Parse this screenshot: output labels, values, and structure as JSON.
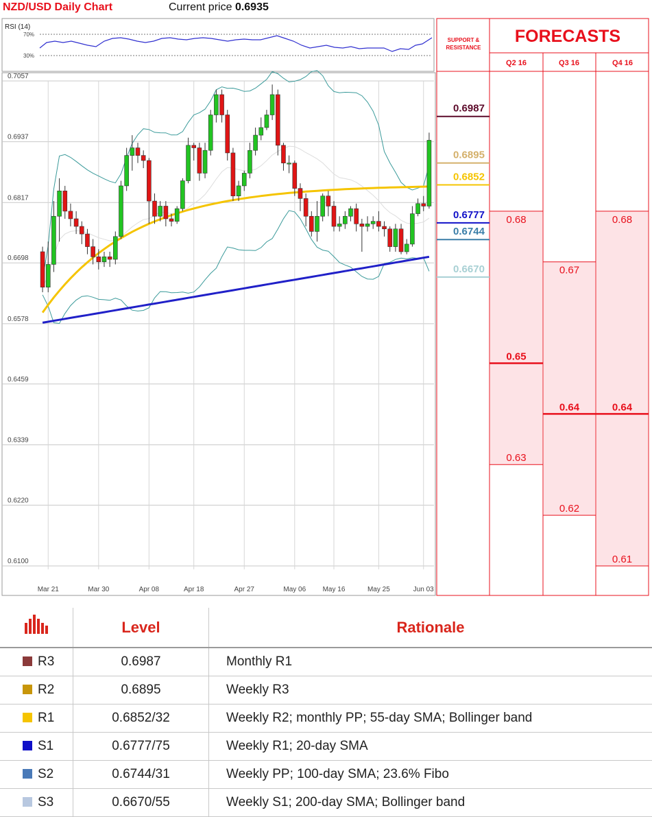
{
  "header": {
    "title": "NZD/USD Daily Chart",
    "price_label": "Current price",
    "price_value": "0.6935"
  },
  "rsi": {
    "label": "RSI (14)",
    "levels": [
      "70%",
      "30%"
    ]
  },
  "chart_data": {
    "type": "candlestick",
    "y_ticks": [
      "0.7057",
      "0.6937",
      "0.6817",
      "0.6698",
      "0.6578",
      "0.6459",
      "0.6339",
      "0.6220",
      "0.6100"
    ],
    "ylim": [
      0.61,
      0.7057
    ],
    "x_ticks": [
      "Mar 21",
      "Mar 30",
      "Apr 08",
      "Apr 18",
      "Apr 27",
      "May 06",
      "May 16",
      "May 25",
      "Jun 03"
    ],
    "candles": [
      [
        0.672,
        0.665,
        0.673,
        0.664
      ],
      [
        0.665,
        0.6695,
        0.674,
        0.664
      ],
      [
        0.6695,
        0.679,
        0.682,
        0.668
      ],
      [
        0.679,
        0.684,
        0.6865,
        0.674
      ],
      [
        0.684,
        0.68,
        0.685,
        0.6785
      ],
      [
        0.68,
        0.6785,
        0.6815,
        0.677
      ],
      [
        0.6785,
        0.677,
        0.68,
        0.6755
      ],
      [
        0.677,
        0.6755,
        0.678,
        0.6735
      ],
      [
        0.6755,
        0.673,
        0.6765,
        0.6715
      ],
      [
        0.673,
        0.671,
        0.6745,
        0.6695
      ],
      [
        0.671,
        0.67,
        0.6725,
        0.6685
      ],
      [
        0.67,
        0.671,
        0.672,
        0.669
      ],
      [
        0.671,
        0.6705,
        0.672,
        0.669
      ],
      [
        0.6705,
        0.675,
        0.676,
        0.6695
      ],
      [
        0.675,
        0.685,
        0.686,
        0.6745
      ],
      [
        0.685,
        0.691,
        0.6925,
        0.684
      ],
      [
        0.691,
        0.6925,
        0.695,
        0.688
      ],
      [
        0.6925,
        0.691,
        0.6935,
        0.6895
      ],
      [
        0.691,
        0.69,
        0.692,
        0.6885
      ],
      [
        0.69,
        0.682,
        0.6905,
        0.6775
      ],
      [
        0.682,
        0.679,
        0.6835,
        0.6775
      ],
      [
        0.679,
        0.681,
        0.682,
        0.678
      ],
      [
        0.681,
        0.6785,
        0.682,
        0.677
      ],
      [
        0.6785,
        0.678,
        0.6795,
        0.677
      ],
      [
        0.678,
        0.6805,
        0.681,
        0.6775
      ],
      [
        0.6805,
        0.686,
        0.6865,
        0.68
      ],
      [
        0.686,
        0.693,
        0.6945,
        0.6855
      ],
      [
        0.693,
        0.6925,
        0.6935,
        0.69
      ],
      [
        0.6925,
        0.6875,
        0.6935,
        0.686
      ],
      [
        0.6875,
        0.692,
        0.6935,
        0.6865
      ],
      [
        0.692,
        0.699,
        0.7,
        0.691
      ],
      [
        0.699,
        0.703,
        0.704,
        0.6975
      ],
      [
        0.703,
        0.699,
        0.704,
        0.6975
      ],
      [
        0.699,
        0.6915,
        0.7,
        0.69
      ],
      [
        0.6915,
        0.683,
        0.6925,
        0.682
      ],
      [
        0.683,
        0.685,
        0.686,
        0.682
      ],
      [
        0.685,
        0.6875,
        0.688,
        0.684
      ],
      [
        0.6875,
        0.692,
        0.6935,
        0.6865
      ],
      [
        0.692,
        0.695,
        0.6965,
        0.691
      ],
      [
        0.695,
        0.6965,
        0.6985,
        0.694
      ],
      [
        0.6965,
        0.699,
        0.7,
        0.696
      ],
      [
        0.699,
        0.703,
        0.705,
        0.698
      ],
      [
        0.703,
        0.693,
        0.704,
        0.691
      ],
      [
        0.693,
        0.6895,
        0.6935,
        0.688
      ],
      [
        0.6895,
        0.6895,
        0.691,
        0.6875
      ],
      [
        0.6895,
        0.6845,
        0.69,
        0.683
      ],
      [
        0.6845,
        0.6825,
        0.6855,
        0.68
      ],
      [
        0.6825,
        0.679,
        0.6835,
        0.677
      ],
      [
        0.679,
        0.676,
        0.68,
        0.675
      ],
      [
        0.676,
        0.679,
        0.682,
        0.674
      ],
      [
        0.679,
        0.683,
        0.6835,
        0.678
      ],
      [
        0.683,
        0.681,
        0.684,
        0.679
      ],
      [
        0.681,
        0.677,
        0.682,
        0.676
      ],
      [
        0.677,
        0.6775,
        0.679,
        0.676
      ],
      [
        0.6775,
        0.679,
        0.68,
        0.6765
      ],
      [
        0.679,
        0.6805,
        0.681,
        0.678
      ],
      [
        0.6805,
        0.6775,
        0.6815,
        0.676
      ],
      [
        0.6775,
        0.677,
        0.6785,
        0.672
      ],
      [
        0.677,
        0.6775,
        0.679,
        0.676
      ],
      [
        0.6775,
        0.678,
        0.679,
        0.6765
      ],
      [
        0.678,
        0.677,
        0.68,
        0.676
      ],
      [
        0.677,
        0.6765,
        0.678,
        0.675
      ],
      [
        0.6765,
        0.673,
        0.677,
        0.672
      ],
      [
        0.673,
        0.6765,
        0.6775,
        0.672
      ],
      [
        0.6765,
        0.672,
        0.6775,
        0.6715
      ],
      [
        0.672,
        0.6735,
        0.6745,
        0.6715
      ],
      [
        0.6735,
        0.6795,
        0.681,
        0.673
      ],
      [
        0.6795,
        0.6815,
        0.6825,
        0.679
      ],
      [
        0.6815,
        0.681,
        0.683,
        0.68
      ],
      [
        0.681,
        0.694,
        0.6955,
        0.6805
      ]
    ],
    "support_resistance": [
      {
        "value": "0.6987",
        "color": "#5c0a2a"
      },
      {
        "value": "0.6895",
        "color": "#d4b06a"
      },
      {
        "value": "0.6852",
        "color": "#f5c400"
      },
      {
        "value": "0.6777",
        "color": "#1010c8"
      },
      {
        "value": "0.6744",
        "color": "#3a7ea8"
      },
      {
        "value": "0.6670",
        "color": "#a8d0d4"
      }
    ],
    "forecasts": {
      "columns": [
        "Q2 16",
        "Q3 16",
        "Q4 16"
      ],
      "values": [
        {
          "high": "0.68",
          "mid": "0.65",
          "low": "0.63"
        },
        {
          "high": "0.67",
          "mid": "0.64",
          "low": "0.62"
        },
        {
          "high": "0.68",
          "mid": "0.64",
          "low": "0.61"
        }
      ]
    }
  },
  "panel": {
    "sr_label_1": "SUPPORT &",
    "sr_label_2": "RESISTANCE",
    "forecasts_title": "FORECASTS"
  },
  "table": {
    "headers": {
      "level": "Level",
      "rationale": "Rationale"
    },
    "rows": [
      {
        "name": "R3",
        "level": "0.6987",
        "rationale": "Monthly R1",
        "color": "#8b3a3a"
      },
      {
        "name": "R2",
        "level": "0.6895",
        "rationale": "Weekly R3",
        "color": "#c8960a"
      },
      {
        "name": "R1",
        "level": "0.6852/32",
        "rationale": "Weekly R2; monthly PP; 55-day SMA; Bollinger band",
        "color": "#f5c400"
      },
      {
        "name": "S1",
        "level": "0.6777/75",
        "rationale": "Weekly R1; 20-day SMA",
        "color": "#1010c8"
      },
      {
        "name": "S2",
        "level": "0.6744/31",
        "rationale": "Weekly PP; 100-day SMA; 23.6% Fibo",
        "color": "#4a7ab8"
      },
      {
        "name": "S3",
        "level": "0.6670/55",
        "rationale": "Weekly S1; 200-day SMA; Bollinger band",
        "color": "#b8c8e0"
      }
    ]
  }
}
